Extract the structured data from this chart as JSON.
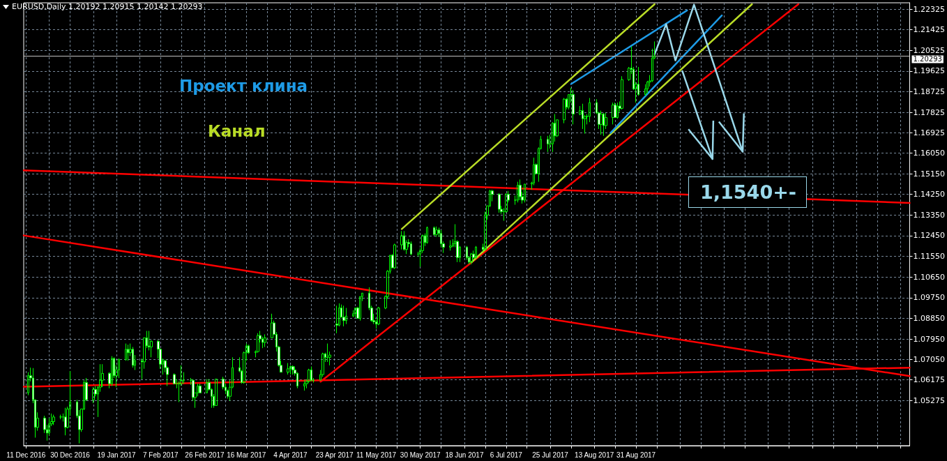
{
  "chart_data": {
    "type": "candlestick",
    "title": "EURUSD,Daily 1.20192 1.20915 1.20142 1.20293",
    "color": "#00ff00",
    "x": [
      "2016-12-12",
      "2016-12-13",
      "2016-12-14",
      "2016-12-15",
      "2016-12-16",
      "2016-12-19",
      "2016-12-20",
      "2016-12-21",
      "2016-12-22",
      "2016-12-23",
      "2016-12-26",
      "2016-12-27",
      "2016-12-28",
      "2016-12-29",
      "2016-12-30",
      "2017-01-02",
      "2017-01-03",
      "2017-01-04",
      "2017-01-05",
      "2017-01-06",
      "2017-01-09",
      "2017-01-10",
      "2017-01-11",
      "2017-01-12",
      "2017-01-13",
      "2017-01-16",
      "2017-01-17",
      "2017-01-18",
      "2017-01-19",
      "2017-01-20",
      "2017-01-23",
      "2017-01-24",
      "2017-01-25",
      "2017-01-26",
      "2017-01-27",
      "2017-01-30",
      "2017-01-31",
      "2017-02-01",
      "2017-02-02",
      "2017-02-03",
      "2017-02-06",
      "2017-02-07",
      "2017-02-08",
      "2017-02-09",
      "2017-02-10",
      "2017-02-13",
      "2017-02-14",
      "2017-02-15",
      "2017-02-16",
      "2017-02-17",
      "2017-02-20",
      "2017-02-21",
      "2017-02-22",
      "2017-02-23",
      "2017-02-24",
      "2017-02-27",
      "2017-02-28",
      "2017-03-01",
      "2017-03-02",
      "2017-03-03",
      "2017-03-06",
      "2017-03-07",
      "2017-03-08",
      "2017-03-09",
      "2017-03-10",
      "2017-03-13",
      "2017-03-14",
      "2017-03-15",
      "2017-03-16",
      "2017-03-17",
      "2017-03-20",
      "2017-03-21",
      "2017-03-22",
      "2017-03-23",
      "2017-03-24",
      "2017-03-27",
      "2017-03-28",
      "2017-03-29",
      "2017-03-30",
      "2017-03-31",
      "2017-04-03",
      "2017-04-04",
      "2017-04-05",
      "2017-04-06",
      "2017-04-07",
      "2017-04-10",
      "2017-04-11",
      "2017-04-12",
      "2017-04-13",
      "2017-04-14",
      "2017-04-17",
      "2017-04-18",
      "2017-04-19",
      "2017-04-20",
      "2017-04-21",
      "2017-04-24",
      "2017-04-25",
      "2017-04-26",
      "2017-04-27",
      "2017-04-28",
      "2017-05-01",
      "2017-05-02",
      "2017-05-03",
      "2017-05-04",
      "2017-05-05",
      "2017-05-08",
      "2017-05-09",
      "2017-05-10",
      "2017-05-11",
      "2017-05-12",
      "2017-05-15",
      "2017-05-16",
      "2017-05-17",
      "2017-05-18",
      "2017-05-19",
      "2017-05-22",
      "2017-05-23",
      "2017-05-24",
      "2017-05-25",
      "2017-05-26",
      "2017-05-29",
      "2017-05-30",
      "2017-05-31",
      "2017-06-01",
      "2017-06-02",
      "2017-06-05",
      "2017-06-06",
      "2017-06-07",
      "2017-06-08",
      "2017-06-09",
      "2017-06-12",
      "2017-06-13",
      "2017-06-14",
      "2017-06-15",
      "2017-06-16",
      "2017-06-19",
      "2017-06-20",
      "2017-06-21",
      "2017-06-22",
      "2017-06-23",
      "2017-06-26",
      "2017-06-27",
      "2017-06-28",
      "2017-06-29",
      "2017-06-30",
      "2017-07-03",
      "2017-07-04",
      "2017-07-05",
      "2017-07-06",
      "2017-07-07",
      "2017-07-10",
      "2017-07-11",
      "2017-07-12",
      "2017-07-13",
      "2017-07-14",
      "2017-07-17",
      "2017-07-18",
      "2017-07-19",
      "2017-07-20",
      "2017-07-21",
      "2017-07-24",
      "2017-07-25",
      "2017-07-26",
      "2017-07-27",
      "2017-07-28",
      "2017-07-31",
      "2017-08-01",
      "2017-08-02",
      "2017-08-03",
      "2017-08-04",
      "2017-08-07",
      "2017-08-08",
      "2017-08-09",
      "2017-08-10",
      "2017-08-11",
      "2017-08-14",
      "2017-08-15",
      "2017-08-16",
      "2017-08-17",
      "2017-08-18",
      "2017-08-21",
      "2017-08-22",
      "2017-08-23",
      "2017-08-24",
      "2017-08-25",
      "2017-08-28",
      "2017-08-29",
      "2017-08-30",
      "2017-08-31",
      "2017-09-01",
      "2017-09-04",
      "2017-09-05",
      "2017-09-06",
      "2017-09-07",
      "2017-09-08"
    ],
    "ohlc": [
      [
        1.056,
        1.065,
        1.055,
        1.0635
      ],
      [
        1.0635,
        1.067,
        1.061,
        1.0625
      ],
      [
        1.0625,
        1.0668,
        1.0515,
        1.053
      ],
      [
        1.053,
        1.053,
        1.0365,
        1.041
      ],
      [
        1.041,
        1.0475,
        1.0395,
        1.045
      ],
      [
        1.045,
        1.046,
        1.0385,
        1.04
      ],
      [
        1.04,
        1.042,
        1.0352,
        1.0385
      ],
      [
        1.0385,
        1.045,
        1.0375,
        1.0425
      ],
      [
        1.0425,
        1.047,
        1.0415,
        1.0435
      ],
      [
        1.0435,
        1.0465,
        1.042,
        1.0455
      ],
      [
        1.0455,
        1.0465,
        1.0445,
        1.0455
      ],
      [
        1.0455,
        1.047,
        1.0435,
        1.0455
      ],
      [
        1.0455,
        1.0495,
        1.0375,
        1.041
      ],
      [
        1.041,
        1.05,
        1.0405,
        1.049
      ],
      [
        1.049,
        1.0655,
        1.046,
        1.052
      ],
      [
        1.052,
        1.053,
        1.045,
        1.046
      ],
      [
        1.046,
        1.0485,
        1.034,
        1.04
      ],
      [
        1.04,
        1.049,
        1.039,
        1.049
      ],
      [
        1.049,
        1.0615,
        1.0485,
        1.0605
      ],
      [
        1.0605,
        1.0625,
        1.0525,
        1.053
      ],
      [
        1.053,
        1.0585,
        1.0515,
        1.0575
      ],
      [
        1.0575,
        1.059,
        1.0545,
        1.0555
      ],
      [
        1.0555,
        1.059,
        1.0455,
        1.0585
      ],
      [
        1.0585,
        1.0685,
        1.0565,
        1.0615
      ],
      [
        1.0615,
        1.0685,
        1.0585,
        1.0645
      ],
      [
        1.0645,
        1.065,
        1.058,
        1.06
      ],
      [
        1.06,
        1.072,
        1.059,
        1.071
      ],
      [
        1.071,
        1.0715,
        1.0625,
        1.0635
      ],
      [
        1.0635,
        1.068,
        1.0585,
        1.066
      ],
      [
        1.066,
        1.071,
        1.0625,
        1.0705
      ],
      [
        1.0705,
        1.0775,
        1.07,
        1.075
      ],
      [
        1.075,
        1.077,
        1.07,
        1.0735
      ],
      [
        1.0735,
        1.0775,
        1.072,
        1.075
      ],
      [
        1.075,
        1.076,
        1.067,
        1.068
      ],
      [
        1.068,
        1.0725,
        1.066,
        1.07
      ],
      [
        1.07,
        1.071,
        1.062,
        1.0695
      ],
      [
        1.0695,
        1.08,
        1.0665,
        1.08
      ],
      [
        1.08,
        1.083,
        1.0755,
        1.0765
      ],
      [
        1.0765,
        1.083,
        1.0745,
        1.076
      ],
      [
        1.076,
        1.079,
        1.0715,
        1.0785
      ],
      [
        1.0785,
        1.079,
        1.071,
        1.075
      ],
      [
        1.075,
        1.0755,
        1.0665,
        1.0685
      ],
      [
        1.0685,
        1.071,
        1.064,
        1.07
      ],
      [
        1.07,
        1.0705,
        1.065,
        1.067
      ],
      [
        1.067,
        1.0675,
        1.059,
        1.064
      ],
      [
        1.064,
        1.0645,
        1.06,
        1.06
      ],
      [
        1.06,
        1.062,
        1.058,
        1.06
      ],
      [
        1.06,
        1.061,
        1.052,
        1.06
      ],
      [
        1.06,
        1.068,
        1.059,
        1.0615
      ],
      [
        1.0615,
        1.065,
        1.06,
        1.0615
      ],
      [
        1.0615,
        1.0625,
        1.0595,
        1.0615
      ],
      [
        1.0615,
        1.062,
        1.0525,
        1.054
      ],
      [
        1.054,
        1.056,
        1.0495,
        1.056
      ],
      [
        1.056,
        1.06,
        1.0545,
        1.059
      ],
      [
        1.059,
        1.06,
        1.056,
        1.056
      ],
      [
        1.056,
        1.062,
        1.056,
        1.0605
      ],
      [
        1.0605,
        1.062,
        1.057,
        1.0575
      ],
      [
        1.0575,
        1.058,
        1.0495,
        1.0545
      ],
      [
        1.0545,
        1.0555,
        1.0495,
        1.0505
      ],
      [
        1.0505,
        1.062,
        1.0505,
        1.062
      ],
      [
        1.062,
        1.063,
        1.0575,
        1.0585
      ],
      [
        1.0585,
        1.06,
        1.0555,
        1.057
      ],
      [
        1.057,
        1.0575,
        1.0535,
        1.0545
      ],
      [
        1.0545,
        1.0615,
        1.0525,
        1.0585
      ],
      [
        1.0585,
        1.0715,
        1.058,
        1.067
      ],
      [
        1.067,
        1.0715,
        1.065,
        1.0655
      ],
      [
        1.0655,
        1.066,
        1.06,
        1.0605
      ],
      [
        1.0605,
        1.074,
        1.06,
        1.0735
      ],
      [
        1.0735,
        1.0775,
        1.07,
        1.0765
      ],
      [
        1.0765,
        1.077,
        1.073,
        1.0735
      ],
      [
        1.0735,
        1.0745,
        1.0715,
        1.074
      ],
      [
        1.074,
        1.082,
        1.0735,
        1.081
      ],
      [
        1.081,
        1.083,
        1.078,
        1.0795
      ],
      [
        1.0795,
        1.0805,
        1.0755,
        1.078
      ],
      [
        1.078,
        1.0815,
        1.076,
        1.08
      ],
      [
        1.08,
        1.0905,
        1.08,
        1.0865
      ],
      [
        1.0865,
        1.0875,
        1.0815,
        1.0815
      ],
      [
        1.0815,
        1.0825,
        1.074,
        1.076
      ],
      [
        1.076,
        1.0765,
        1.0675,
        1.068
      ],
      [
        1.068,
        1.07,
        1.065,
        1.065
      ],
      [
        1.065,
        1.069,
        1.064,
        1.0665
      ],
      [
        1.0665,
        1.068,
        1.064,
        1.0675
      ],
      [
        1.0675,
        1.068,
        1.064,
        1.066
      ],
      [
        1.066,
        1.0675,
        1.0635,
        1.0645
      ],
      [
        1.0645,
        1.065,
        1.058,
        1.059
      ],
      [
        1.059,
        1.0615,
        1.057,
        1.06
      ],
      [
        1.06,
        1.062,
        1.058,
        1.061
      ],
      [
        1.061,
        1.0665,
        1.0605,
        1.066
      ],
      [
        1.066,
        1.0675,
        1.061,
        1.0615
      ],
      [
        1.0615,
        1.0625,
        1.0605,
        1.0615
      ],
      [
        1.0615,
        1.066,
        1.0615,
        1.064
      ],
      [
        1.064,
        1.0735,
        1.063,
        1.073
      ],
      [
        1.073,
        1.0735,
        1.0695,
        1.0715
      ],
      [
        1.0715,
        1.0775,
        1.0695,
        1.0715
      ],
      [
        1.0715,
        1.074,
        1.068,
        1.0725
      ],
      [
        1.086,
        1.094,
        1.082,
        1.0855
      ],
      [
        1.0855,
        1.095,
        1.085,
        1.093
      ],
      [
        1.093,
        1.0945,
        1.089,
        1.089
      ],
      [
        1.089,
        1.094,
        1.085,
        1.0875
      ],
      [
        1.0875,
        1.093,
        1.086,
        1.0895
      ],
      [
        1.0895,
        1.092,
        1.089,
        1.0905
      ],
      [
        1.0905,
        1.093,
        1.089,
        1.093
      ],
      [
        1.093,
        1.0935,
        1.0885,
        1.0885
      ],
      [
        1.0885,
        1.098,
        1.0875,
        1.098
      ],
      [
        1.098,
        1.0995,
        1.096,
        1.0995
      ],
      [
        1.0995,
        1.102,
        1.092,
        1.093
      ],
      [
        1.093,
        1.094,
        1.087,
        1.0875
      ],
      [
        1.0875,
        1.0905,
        1.086,
        1.087
      ],
      [
        1.087,
        1.088,
        1.084,
        1.086
      ],
      [
        1.086,
        1.0935,
        1.0855,
        1.093
      ],
      [
        1.093,
        1.0985,
        1.0925,
        1.098
      ],
      [
        1.098,
        1.1095,
        1.097,
        1.109
      ],
      [
        1.109,
        1.116,
        1.108,
        1.116
      ],
      [
        1.116,
        1.1165,
        1.1105,
        1.1105
      ],
      [
        1.1105,
        1.121,
        1.11,
        1.1205
      ],
      [
        1.1205,
        1.1265,
        1.1185,
        1.1245
      ],
      [
        1.1245,
        1.1265,
        1.118,
        1.1185
      ],
      [
        1.1185,
        1.1225,
        1.1165,
        1.1215
      ],
      [
        1.1215,
        1.123,
        1.1195,
        1.121
      ],
      [
        1.121,
        1.122,
        1.116,
        1.1165
      ],
      [
        1.1165,
        1.1175,
        1.1155,
        1.1165
      ],
      [
        1.1165,
        1.119,
        1.111,
        1.118
      ],
      [
        1.118,
        1.125,
        1.117,
        1.1245
      ],
      [
        1.1245,
        1.1255,
        1.12,
        1.1215
      ],
      [
        1.1215,
        1.1285,
        1.121,
        1.128
      ],
      [
        1.128,
        1.1285,
        1.1245,
        1.125
      ],
      [
        1.125,
        1.1285,
        1.124,
        1.127
      ],
      [
        1.127,
        1.128,
        1.124,
        1.1255
      ],
      [
        1.1255,
        1.127,
        1.1195,
        1.121
      ],
      [
        1.121,
        1.122,
        1.117,
        1.1195
      ],
      [
        1.1195,
        1.1225,
        1.118,
        1.12
      ],
      [
        1.12,
        1.123,
        1.1195,
        1.121
      ],
      [
        1.121,
        1.1295,
        1.1195,
        1.122
      ],
      [
        1.122,
        1.1225,
        1.113,
        1.115
      ],
      [
        1.115,
        1.12,
        1.113,
        1.1195
      ],
      [
        1.1195,
        1.12,
        1.114,
        1.115
      ],
      [
        1.115,
        1.1155,
        1.112,
        1.113
      ],
      [
        1.113,
        1.117,
        1.112,
        1.1165
      ],
      [
        1.1165,
        1.118,
        1.1145,
        1.115
      ],
      [
        1.115,
        1.12,
        1.1145,
        1.1195
      ],
      [
        1.1195,
        1.121,
        1.1175,
        1.1185
      ],
      [
        1.1185,
        1.135,
        1.118,
        1.1335
      ],
      [
        1.1335,
        1.1375,
        1.1315,
        1.1375
      ],
      [
        1.1375,
        1.1445,
        1.137,
        1.144
      ],
      [
        1.144,
        1.1445,
        1.1395,
        1.1425
      ],
      [
        1.1425,
        1.143,
        1.1345,
        1.136
      ],
      [
        1.136,
        1.1375,
        1.134,
        1.135
      ],
      [
        1.135,
        1.1365,
        1.131,
        1.135
      ],
      [
        1.135,
        1.143,
        1.1345,
        1.1425
      ],
      [
        1.1425,
        1.144,
        1.139,
        1.14
      ],
      [
        1.14,
        1.142,
        1.138,
        1.14
      ],
      [
        1.14,
        1.148,
        1.139,
        1.1465
      ],
      [
        1.1465,
        1.149,
        1.14,
        1.1415
      ],
      [
        1.1415,
        1.1435,
        1.1385,
        1.14
      ],
      [
        1.14,
        1.147,
        1.139,
        1.147
      ],
      [
        1.147,
        1.148,
        1.1445,
        1.1475
      ],
      [
        1.1475,
        1.1585,
        1.1465,
        1.1555
      ],
      [
        1.1555,
        1.156,
        1.1515,
        1.1515
      ],
      [
        1.1515,
        1.163,
        1.148,
        1.1625
      ],
      [
        1.1625,
        1.168,
        1.162,
        1.1665
      ],
      [
        1.1665,
        1.168,
        1.161,
        1.1645
      ],
      [
        1.1645,
        1.1685,
        1.1625,
        1.1645
      ],
      [
        1.1645,
        1.174,
        1.161,
        1.1735
      ],
      [
        1.1735,
        1.1775,
        1.1655,
        1.168
      ],
      [
        1.168,
        1.175,
        1.1675,
        1.175
      ],
      [
        1.175,
        1.1845,
        1.1735,
        1.184
      ],
      [
        1.184,
        1.1845,
        1.1795,
        1.1805
      ],
      [
        1.1805,
        1.186,
        1.1795,
        1.186
      ],
      [
        1.186,
        1.189,
        1.1825,
        1.186
      ],
      [
        1.186,
        1.188,
        1.173,
        1.1775
      ],
      [
        1.1775,
        1.181,
        1.177,
        1.179
      ],
      [
        1.179,
        1.182,
        1.171,
        1.1755
      ],
      [
        1.1755,
        1.177,
        1.169,
        1.1765
      ],
      [
        1.1765,
        1.1775,
        1.173,
        1.1765
      ],
      [
        1.1765,
        1.1845,
        1.174,
        1.1825
      ],
      [
        1.1825,
        1.184,
        1.1775,
        1.178
      ],
      [
        1.178,
        1.1785,
        1.171,
        1.173
      ],
      [
        1.173,
        1.179,
        1.1685,
        1.1775
      ],
      [
        1.1775,
        1.178,
        1.168,
        1.1725
      ],
      [
        1.1725,
        1.178,
        1.171,
        1.176
      ],
      [
        1.176,
        1.1825,
        1.173,
        1.1815
      ],
      [
        1.1815,
        1.1825,
        1.176,
        1.176
      ],
      [
        1.176,
        1.1825,
        1.1755,
        1.181
      ],
      [
        1.181,
        1.183,
        1.1785,
        1.18
      ],
      [
        1.18,
        1.194,
        1.1795,
        1.1925
      ],
      [
        1.1925,
        1.198,
        1.192,
        1.1975
      ],
      [
        1.1975,
        1.207,
        1.195,
        1.197
      ],
      [
        1.197,
        1.198,
        1.188,
        1.1885
      ],
      [
        1.1885,
        1.1915,
        1.1825,
        1.1905
      ],
      [
        1.1905,
        1.198,
        1.1855,
        1.186
      ],
      [
        1.186,
        1.1905,
        1.1855,
        1.1885
      ],
      [
        1.1885,
        1.192,
        1.1865,
        1.1915
      ],
      [
        1.1915,
        1.1945,
        1.1895,
        1.192
      ],
      [
        1.192,
        1.206,
        1.1915,
        1.202
      ],
      [
        1.20192,
        1.20915,
        1.20142,
        1.20293
      ]
    ],
    "series": [
      {
        "type": "line",
        "color": "#ff0000",
        "x": [
          "2016-12-10",
          "2017-12-27"
        ],
        "values": [
          1.0587,
          1.067
        ]
      },
      {
        "type": "line",
        "color": "#ff0000",
        "x": [
          "2016-12-10",
          "2017-12-27"
        ],
        "values": [
          1.1246,
          1.0633
        ]
      },
      {
        "type": "line",
        "color": "#ff0000",
        "x": [
          "2016-12-10",
          "2017-12-27"
        ],
        "values": [
          1.153,
          1.1388
        ]
      },
      {
        "type": "line",
        "color": "#ff0000",
        "x": [
          "2017-04-17",
          "2017-11-09"
        ],
        "values": [
          1.0609,
          1.2254
        ]
      },
      {
        "type": "line",
        "color": "#b9dc26",
        "x": [
          "2017-05-22",
          "2017-09-08"
        ],
        "values": [
          1.1274,
          1.2254
        ]
      },
      {
        "type": "line",
        "color": "#b9dc26",
        "x": [
          "2017-06-21",
          "2017-10-20"
        ],
        "values": [
          1.1129,
          1.2254
        ]
      },
      {
        "type": "line",
        "color": "#1e9be6",
        "x": [
          "2017-08-03",
          "2017-09-22"
        ],
        "values": [
          1.1906,
          1.2227
        ]
      },
      {
        "type": "line",
        "color": "#1e9be6",
        "x": [
          "2017-08-20",
          "2017-10-07"
        ],
        "values": [
          1.1693,
          1.2205
        ]
      },
      {
        "type": "line",
        "color": "#9ad8ea",
        "x": [
          "2017-09-08",
          "2017-09-13",
          "2017-09-17",
          "2017-09-25",
          "2017-10-16"
        ],
        "values": [
          1.2036,
          1.2167,
          1.2009,
          1.2252,
          1.1611
        ]
      },
      {
        "type": "line",
        "color": "#9ad8ea",
        "x": [
          "2017-09-20",
          "2017-10-03"
        ],
        "values": [
          1.1962,
          1.1579
        ]
      }
    ],
    "marker": "none",
    "line_style": "solid",
    "ref_lines": [
      {
        "axis": "y",
        "value": 1.20293,
        "label": "1.20293",
        "color": "#c0c0c0"
      }
    ],
    "annotations": [
      "Проект клина",
      "Канал",
      "1,1540+-"
    ],
    "grid": true,
    "xlim": [
      "2016-12-10",
      "2017-12-27"
    ],
    "ylim": [
      1.033,
      1.226
    ],
    "xticks": [
      {
        "value": "2016-12-11",
        "label": "11 Dec 2016"
      },
      {
        "value": "2016-12-21",
        "label": null
      },
      {
        "value": "2016-12-30",
        "label": "30 Dec 2016"
      },
      {
        "value": "2017-01-09",
        "label": null
      },
      {
        "value": "2017-01-19",
        "label": "19 Jan 2017"
      },
      {
        "value": "2017-01-29",
        "label": null
      },
      {
        "value": "2017-02-07",
        "label": "7 Feb 2017"
      },
      {
        "value": "2017-02-16",
        "label": null
      },
      {
        "value": "2017-02-26",
        "label": "26 Feb 2017"
      },
      {
        "value": "2017-03-07",
        "label": null
      },
      {
        "value": "2017-03-16",
        "label": "16 Mar 2017"
      },
      {
        "value": "2017-03-25",
        "label": null
      },
      {
        "value": "2017-04-04",
        "label": "4 Apr 2017"
      },
      {
        "value": "2017-04-13",
        "label": null
      },
      {
        "value": "2017-04-23",
        "label": "23 Apr 2017"
      },
      {
        "value": "2017-05-02",
        "label": null
      },
      {
        "value": "2017-05-11",
        "label": "11 May 2017"
      },
      {
        "value": "2017-05-20",
        "label": null
      },
      {
        "value": "2017-05-30",
        "label": "30 May 2017"
      },
      {
        "value": "2017-06-08",
        "label": null
      },
      {
        "value": "2017-06-18",
        "label": "18 Jun 2017"
      },
      {
        "value": "2017-06-27",
        "label": null
      },
      {
        "value": "2017-07-06",
        "label": "6 Jul 2017"
      },
      {
        "value": "2017-07-15",
        "label": null
      },
      {
        "value": "2017-07-25",
        "label": "25 Jul 2017"
      },
      {
        "value": "2017-08-03",
        "label": null
      },
      {
        "value": "2017-08-13",
        "label": "13 Aug 2017"
      },
      {
        "value": "2017-08-22",
        "label": null
      },
      {
        "value": "2017-08-31",
        "label": "31 Aug 2017"
      },
      {
        "value": "2017-09-09",
        "label": null
      },
      {
        "value": "2017-09-19",
        "label": null
      },
      {
        "value": "2017-09-28",
        "label": null
      },
      {
        "value": "2017-10-08",
        "label": null
      },
      {
        "value": "2017-10-17",
        "label": null
      },
      {
        "value": "2017-10-27",
        "label": null
      },
      {
        "value": "2017-11-05",
        "label": null
      },
      {
        "value": "2017-11-15",
        "label": null
      },
      {
        "value": "2017-11-24",
        "label": null
      },
      {
        "value": "2017-12-04",
        "label": null
      },
      {
        "value": "2017-12-13",
        "label": null
      },
      {
        "value": "2017-12-23",
        "label": null
      }
    ],
    "yticks": [
      1.05275,
      {
        "value": 1.06175,
        "label": "1.06175"
      },
      {
        "value": 1.0705,
        "label": "1.07050"
      },
      {
        "value": 1.0795,
        "label": "1.07950"
      },
      {
        "value": 1.0885,
        "label": "1.08850"
      },
      {
        "value": 1.0975,
        "label": "1.09750"
      },
      {
        "value": 1.1065,
        "label": "1.10650"
      },
      {
        "value": 1.1155,
        "label": "1.11550"
      },
      {
        "value": 1.1245,
        "label": "1.12450"
      },
      {
        "value": 1.1335,
        "label": "1.13350"
      },
      {
        "value": 1.1425,
        "label": "1.14250"
      },
      {
        "value": 1.1515,
        "label": "1.15150"
      },
      {
        "value": 1.1605,
        "label": "1.16050"
      },
      1.16925,
      1.17825,
      1.18725,
      1.19625,
      1.20525,
      1.21425,
      1.22325
    ]
  }
}
